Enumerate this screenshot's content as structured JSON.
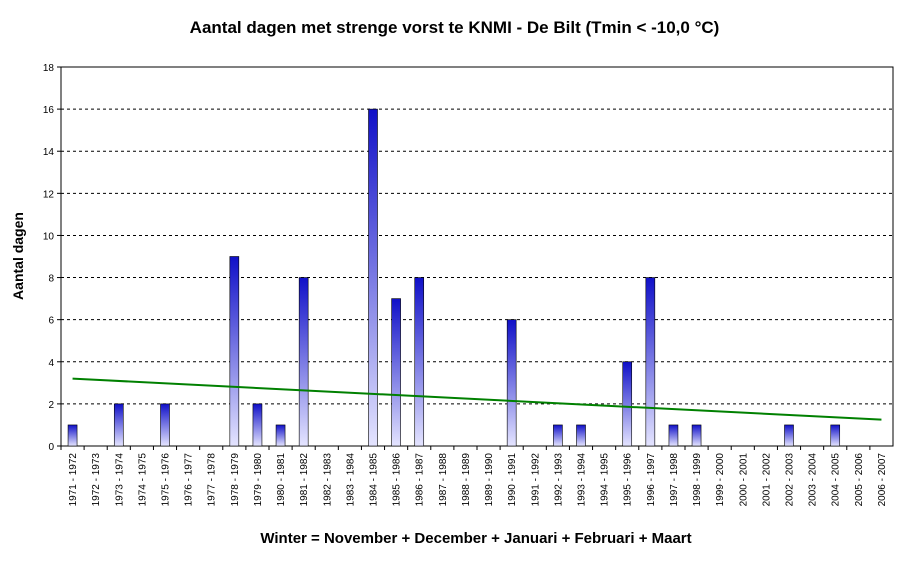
{
  "chart_data": {
    "type": "bar",
    "title": "Aantal dagen met strenge vorst te KNMI - De Bilt (Tmin < -10,0 °C)",
    "xlabel": "Winter = November + December + Januari + Februari + Maart",
    "ylabel": "Aantal dagen",
    "ylim": [
      0,
      18
    ],
    "yticks": [
      "0",
      "2",
      "4",
      "6",
      "8",
      "10",
      "12",
      "14",
      "16",
      "18"
    ],
    "grid": "horizontal dashed",
    "categories": [
      "1971 - 1972",
      "1972 - 1973",
      "1973 - 1974",
      "1974 - 1975",
      "1975 - 1976",
      "1976 - 1977",
      "1977 - 1978",
      "1978 - 1979",
      "1979 - 1980",
      "1980 - 1981",
      "1981 - 1982",
      "1982 - 1983",
      "1983 - 1984",
      "1984 - 1985",
      "1985 - 1986",
      "1986 - 1987",
      "1987 - 1988",
      "1988 - 1989",
      "1989 - 1990",
      "1990 - 1991",
      "1991 - 1992",
      "1992 - 1993",
      "1993 - 1994",
      "1994 - 1995",
      "1995 - 1996",
      "1996 - 1997",
      "1997 - 1998",
      "1998 - 1999",
      "1999 - 2000",
      "2000 - 2001",
      "2001 - 2002",
      "2002 - 2003",
      "2003 - 2004",
      "2004 - 2005",
      "2005 - 2006",
      "2006 - 2007"
    ],
    "values": [
      1,
      0,
      2,
      0,
      2,
      0,
      0,
      9,
      2,
      1,
      8,
      0,
      0,
      16,
      7,
      8,
      0,
      0,
      0,
      6,
      0,
      1,
      1,
      0,
      4,
      8,
      1,
      1,
      0,
      0,
      0,
      1,
      0,
      1,
      0,
      0
    ],
    "trendline": {
      "start": 3.2,
      "end": 1.25,
      "color": "#008000"
    },
    "colors": {
      "bar_top": "#1010c8",
      "bar_bottom": "#e4e4ff"
    }
  }
}
